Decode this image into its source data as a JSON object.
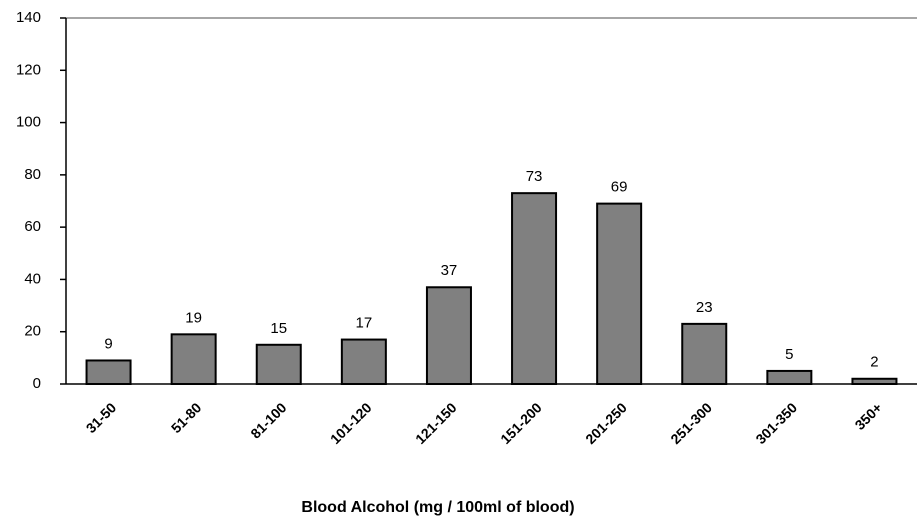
{
  "chart_data": {
    "type": "bar",
    "x_label": "Blood Alcohol  (mg / 100ml of blood)",
    "categories": [
      "31-50",
      "51-80",
      "81-100",
      "101-120",
      "121-150",
      "151-200",
      "201-250",
      "251-300",
      "301-350",
      "350+"
    ],
    "values": [
      9,
      19,
      15,
      17,
      37,
      73,
      69,
      23,
      5,
      2
    ],
    "color": "#808080",
    "ylim": [
      0,
      140
    ],
    "yticks": [
      0,
      20,
      40,
      60,
      80,
      100,
      120,
      140
    ],
    "grid": false
  }
}
